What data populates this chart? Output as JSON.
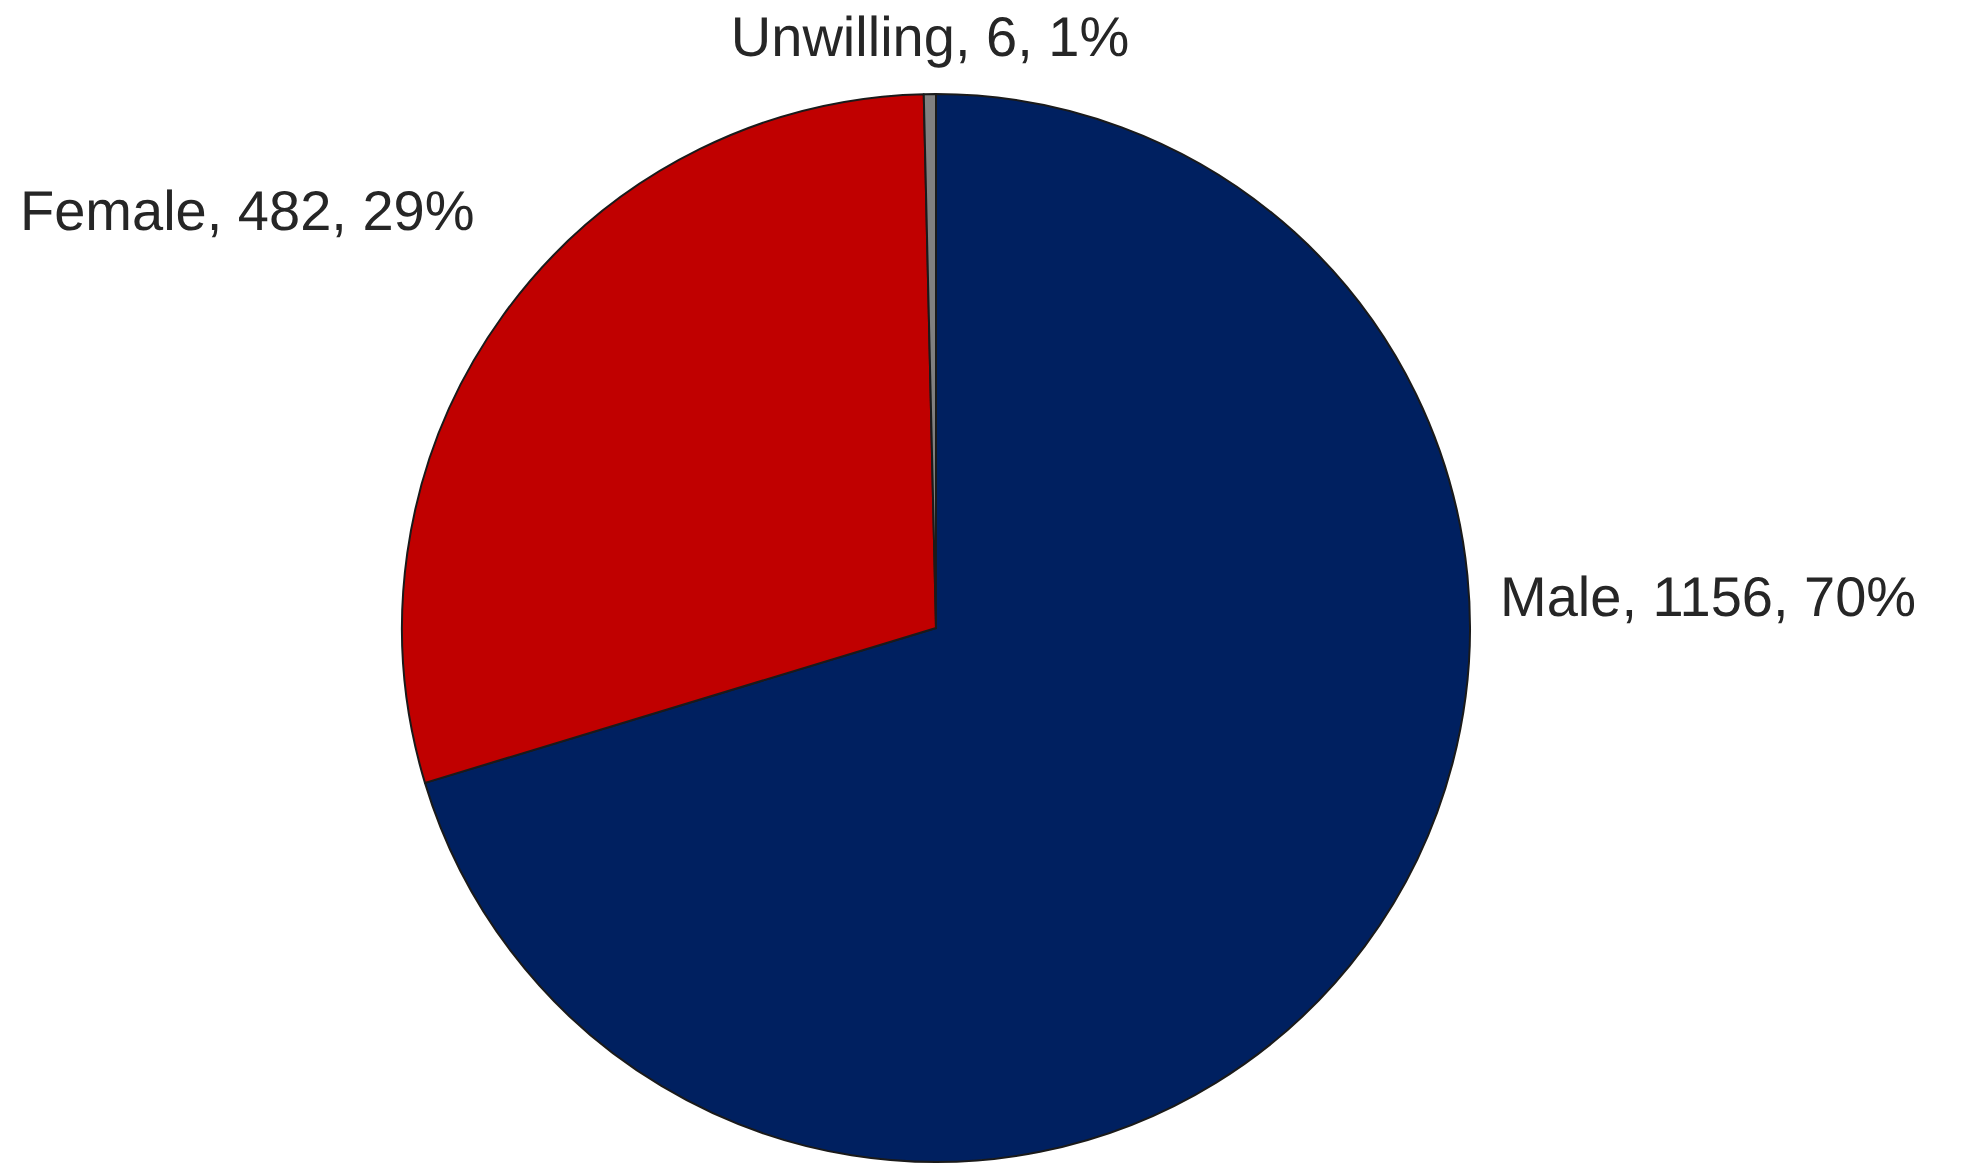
{
  "chart_data": {
    "type": "pie",
    "categories": [
      "Male",
      "Female",
      "Unwilling"
    ],
    "values": [
      1156,
      482,
      6
    ],
    "colors": [
      "#002060",
      "#c00000",
      "#808080"
    ],
    "value_labels": [
      "1156, 70%",
      "482, 29%",
      "6, 1%"
    ]
  }
}
